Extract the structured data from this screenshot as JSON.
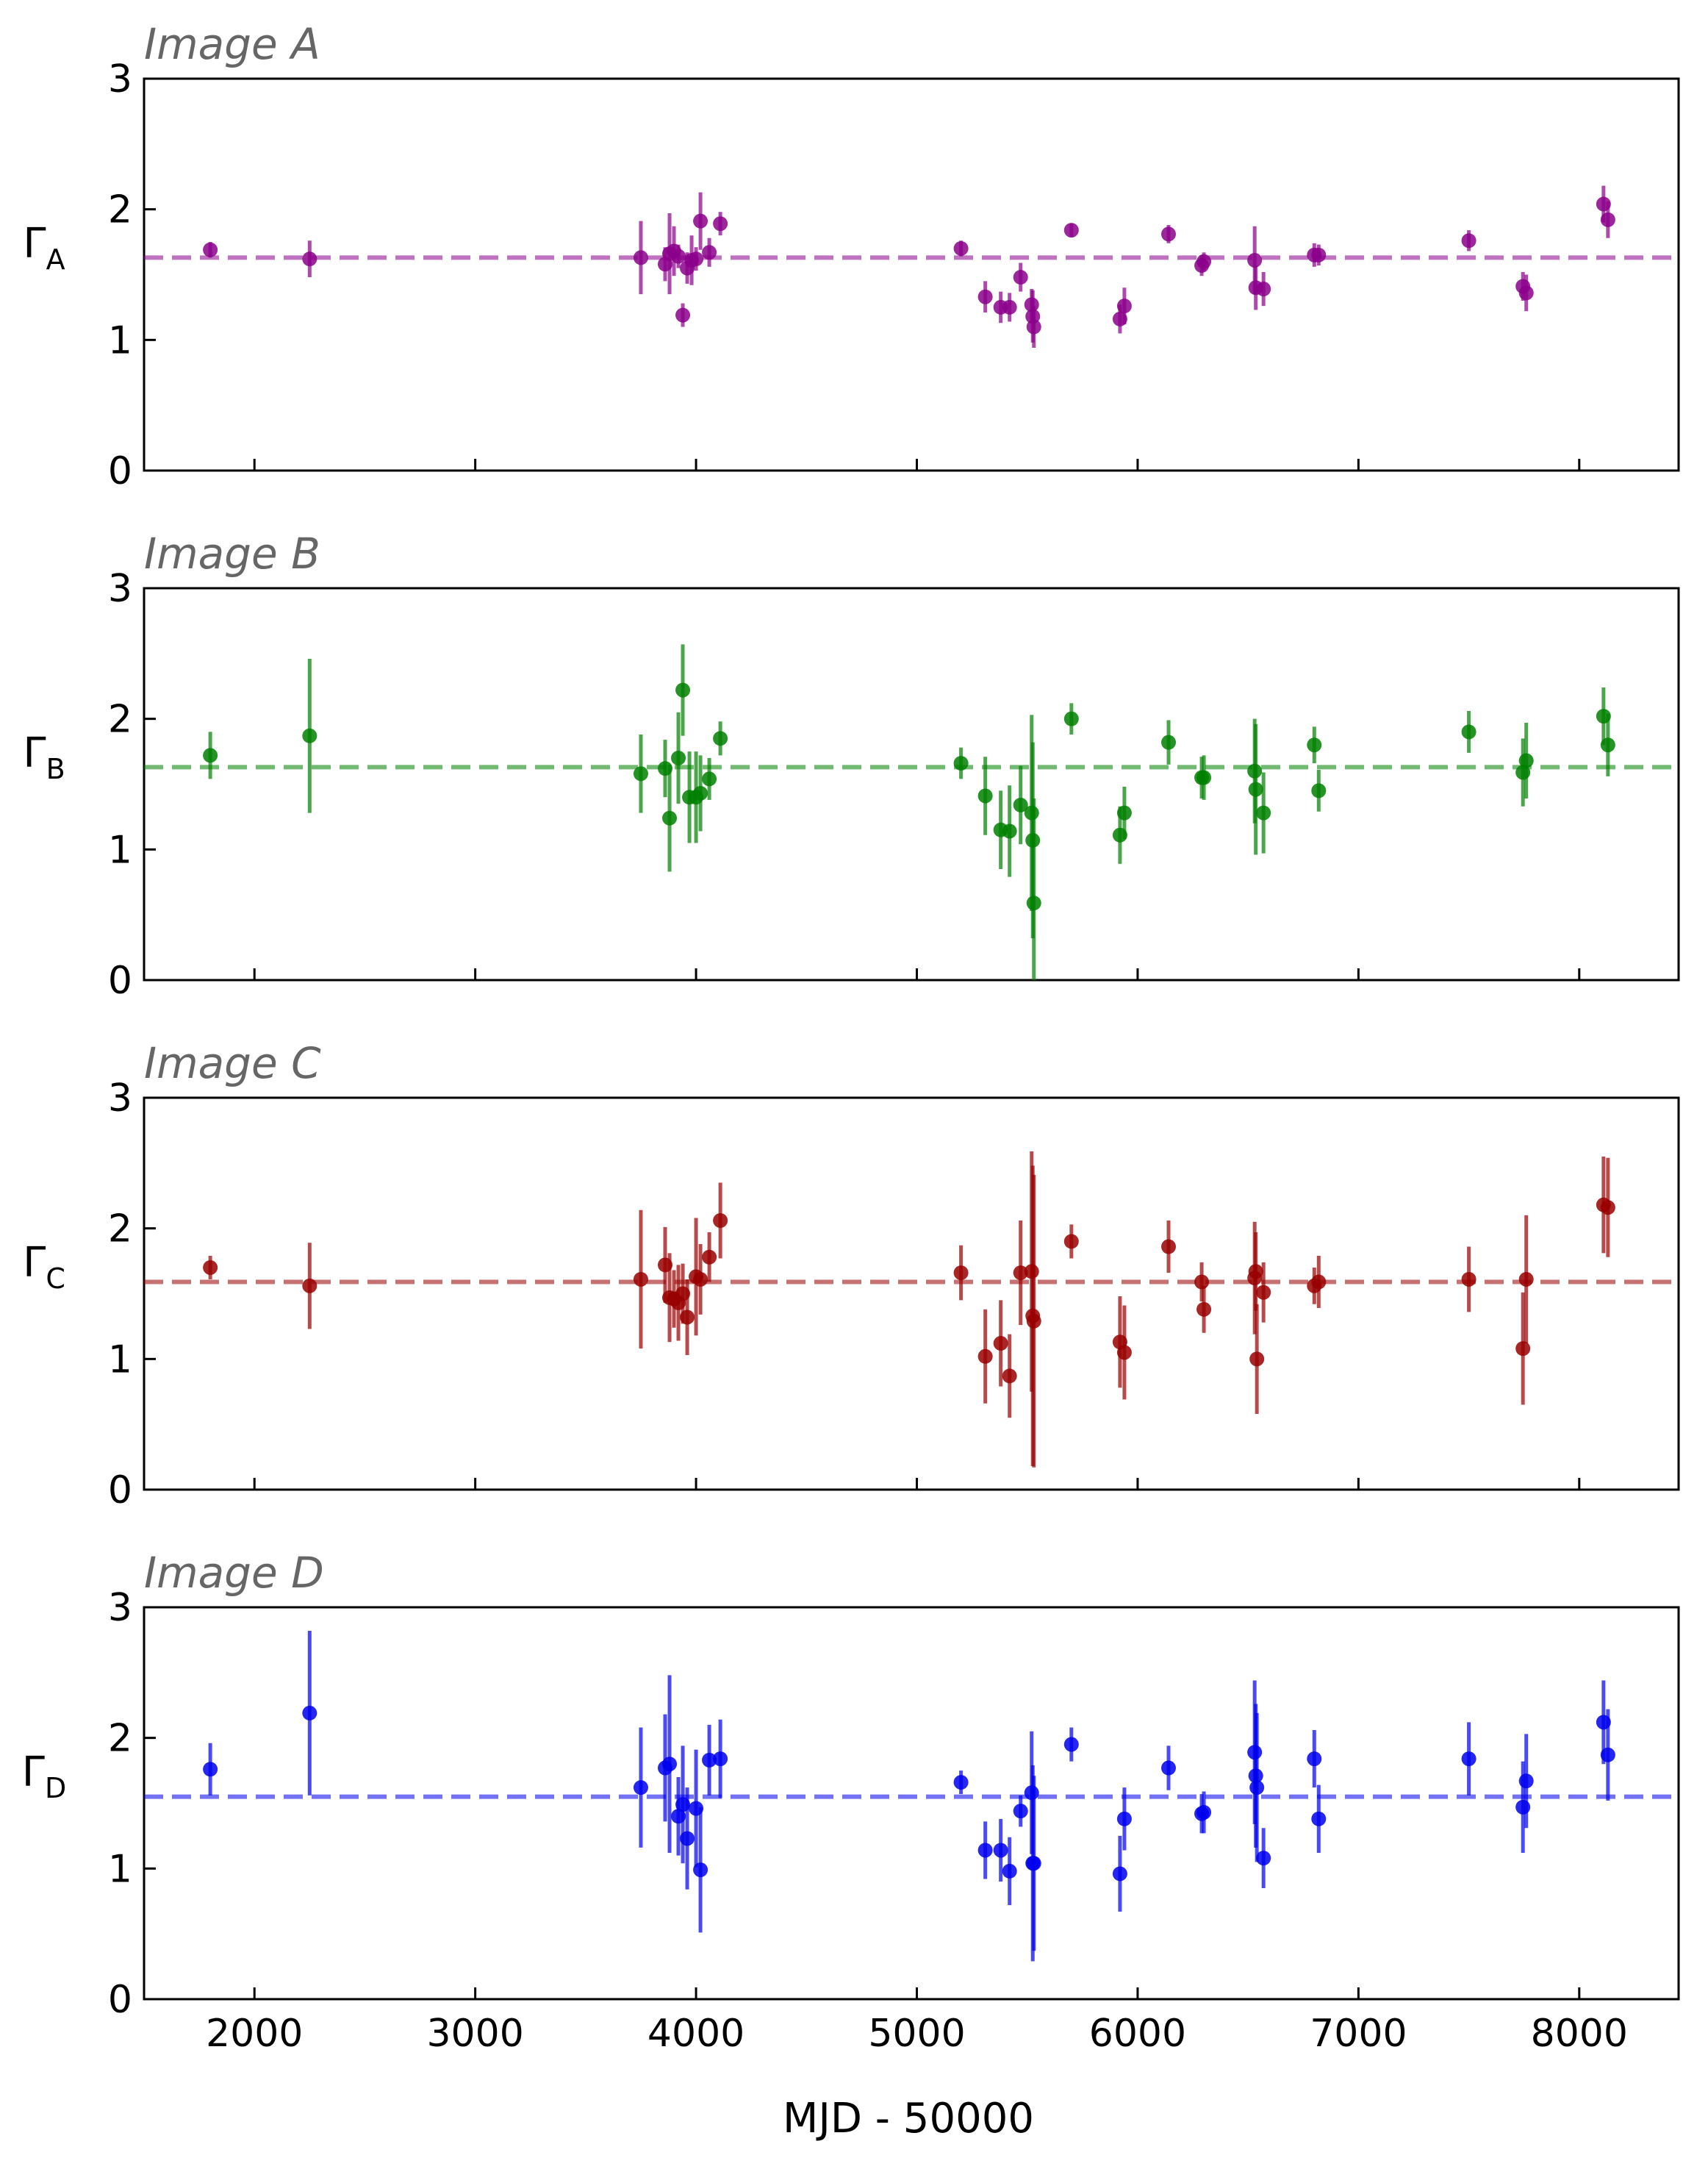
{
  "chart_data": [
    {
      "type": "scatter",
      "title": "Image A",
      "ylabel": "Γ",
      "ylabel_sub": "A",
      "color": "#8b008b",
      "reference_y": 1.63,
      "ylim": [
        0,
        3
      ],
      "xlim": [
        1500,
        8450
      ],
      "yticks": [
        "0",
        "1",
        "2",
        "3"
      ],
      "points": [
        {
          "x": 1800,
          "y": 1.69,
          "err": 0.06
        },
        {
          "x": 2250,
          "y": 1.62,
          "err": 0.14
        },
        {
          "x": 3750,
          "y": 1.63,
          "err": 0.28
        },
        {
          "x": 3860,
          "y": 1.58,
          "err": 0.13
        },
        {
          "x": 3880,
          "y": 1.66,
          "err": 0.31
        },
        {
          "x": 3900,
          "y": 1.68,
          "err": 0.19
        },
        {
          "x": 3920,
          "y": 1.64,
          "err": 0.09
        },
        {
          "x": 3940,
          "y": 1.19,
          "err": 0.09
        },
        {
          "x": 3960,
          "y": 1.55,
          "err": 0.12
        },
        {
          "x": 3980,
          "y": 1.61,
          "err": 0.19
        },
        {
          "x": 4000,
          "y": 1.62,
          "err": 0.09
        },
        {
          "x": 4020,
          "y": 1.91,
          "err": 0.22
        },
        {
          "x": 4060,
          "y": 1.67,
          "err": 0.11
        },
        {
          "x": 4110,
          "y": 1.89,
          "err": 0.09
        },
        {
          "x": 5200,
          "y": 1.7,
          "err": 0.06
        },
        {
          "x": 5310,
          "y": 1.33,
          "err": 0.12
        },
        {
          "x": 5380,
          "y": 1.25,
          "err": 0.12
        },
        {
          "x": 5420,
          "y": 1.25,
          "err": 0.11
        },
        {
          "x": 5470,
          "y": 1.48,
          "err": 0.11
        },
        {
          "x": 5520,
          "y": 1.27,
          "err": 0.12
        },
        {
          "x": 5525,
          "y": 1.18,
          "err": 0.2
        },
        {
          "x": 5530,
          "y": 1.1,
          "err": 0.16
        },
        {
          "x": 5700,
          "y": 1.84,
          "err": 0.05
        },
        {
          "x": 5920,
          "y": 1.16,
          "err": 0.11
        },
        {
          "x": 5940,
          "y": 1.26,
          "err": 0.14
        },
        {
          "x": 6140,
          "y": 1.81,
          "err": 0.07
        },
        {
          "x": 6290,
          "y": 1.57,
          "err": 0.08
        },
        {
          "x": 6300,
          "y": 1.6,
          "err": 0.07
        },
        {
          "x": 6530,
          "y": 1.61,
          "err": 0.26
        },
        {
          "x": 6535,
          "y": 1.4,
          "err": 0.17
        },
        {
          "x": 6570,
          "y": 1.39,
          "err": 0.13
        },
        {
          "x": 6800,
          "y": 1.65,
          "err": 0.09
        },
        {
          "x": 6820,
          "y": 1.65,
          "err": 0.08
        },
        {
          "x": 7500,
          "y": 1.76,
          "err": 0.08
        },
        {
          "x": 7745,
          "y": 1.41,
          "err": 0.11
        },
        {
          "x": 7760,
          "y": 1.36,
          "err": 0.14
        },
        {
          "x": 8110,
          "y": 2.04,
          "err": 0.14
        },
        {
          "x": 8130,
          "y": 1.92,
          "err": 0.14
        }
      ]
    },
    {
      "type": "scatter",
      "title": "Image B",
      "ylabel": "Γ",
      "ylabel_sub": "B",
      "color": "#008000",
      "reference_y": 1.63,
      "ylim": [
        0,
        3
      ],
      "xlim": [
        1500,
        8450
      ],
      "yticks": [
        "0",
        "1",
        "2",
        "3"
      ],
      "points": [
        {
          "x": 1800,
          "y": 1.72,
          "err": 0.18
        },
        {
          "x": 2250,
          "y": 1.87,
          "err": 0.59
        },
        {
          "x": 3750,
          "y": 1.58,
          "err": 0.3
        },
        {
          "x": 3860,
          "y": 1.62,
          "err": 0.22
        },
        {
          "x": 3880,
          "y": 1.24,
          "err": 0.41
        },
        {
          "x": 3920,
          "y": 1.7,
          "err": 0.35
        },
        {
          "x": 3940,
          "y": 2.22,
          "err": 0.35
        },
        {
          "x": 3970,
          "y": 1.4,
          "err": 0.35
        },
        {
          "x": 4000,
          "y": 1.4,
          "err": 0.35
        },
        {
          "x": 4020,
          "y": 1.43,
          "err": 0.29
        },
        {
          "x": 4060,
          "y": 1.54,
          "err": 0.16
        },
        {
          "x": 4110,
          "y": 1.85,
          "err": 0.13
        },
        {
          "x": 5200,
          "y": 1.66,
          "err": 0.12
        },
        {
          "x": 5310,
          "y": 1.41,
          "err": 0.3
        },
        {
          "x": 5380,
          "y": 1.15,
          "err": 0.3
        },
        {
          "x": 5420,
          "y": 1.14,
          "err": 0.35
        },
        {
          "x": 5470,
          "y": 1.34,
          "err": 0.3
        },
        {
          "x": 5520,
          "y": 1.28,
          "err": 0.75
        },
        {
          "x": 5525,
          "y": 1.07,
          "err": 0.75
        },
        {
          "x": 5530,
          "y": 0.59,
          "err": 0.8
        },
        {
          "x": 5700,
          "y": 2.0,
          "err": 0.12
        },
        {
          "x": 5920,
          "y": 1.11,
          "err": 0.22
        },
        {
          "x": 5940,
          "y": 1.28,
          "err": 0.2
        },
        {
          "x": 6140,
          "y": 1.82,
          "err": 0.17
        },
        {
          "x": 6290,
          "y": 1.55,
          "err": 0.16
        },
        {
          "x": 6300,
          "y": 1.55,
          "err": 0.17
        },
        {
          "x": 6530,
          "y": 1.6,
          "err": 0.4
        },
        {
          "x": 6535,
          "y": 1.46,
          "err": 0.5
        },
        {
          "x": 6570,
          "y": 1.28,
          "err": 0.31
        },
        {
          "x": 6800,
          "y": 1.8,
          "err": 0.14
        },
        {
          "x": 6820,
          "y": 1.45,
          "err": 0.16
        },
        {
          "x": 7500,
          "y": 1.9,
          "err": 0.16
        },
        {
          "x": 7745,
          "y": 1.59,
          "err": 0.26
        },
        {
          "x": 7760,
          "y": 1.68,
          "err": 0.29
        },
        {
          "x": 8110,
          "y": 2.02,
          "err": 0.22
        },
        {
          "x": 8130,
          "y": 1.8,
          "err": 0.24
        }
      ]
    },
    {
      "type": "scatter",
      "title": "Image C",
      "ylabel": "Γ",
      "ylabel_sub": "C",
      "color": "#990000",
      "reference_y": 1.59,
      "ylim": [
        0,
        3
      ],
      "xlim": [
        1500,
        8450
      ],
      "yticks": [
        "0",
        "1",
        "2",
        "3"
      ],
      "points": [
        {
          "x": 1800,
          "y": 1.7,
          "err": 0.09
        },
        {
          "x": 2250,
          "y": 1.56,
          "err": 0.33
        },
        {
          "x": 3750,
          "y": 1.61,
          "err": 0.53
        },
        {
          "x": 3860,
          "y": 1.72,
          "err": 0.29
        },
        {
          "x": 3880,
          "y": 1.47,
          "err": 0.34
        },
        {
          "x": 3900,
          "y": 1.46,
          "err": 0.22
        },
        {
          "x": 3920,
          "y": 1.43,
          "err": 0.29
        },
        {
          "x": 3940,
          "y": 1.5,
          "err": 0.23
        },
        {
          "x": 3960,
          "y": 1.32,
          "err": 0.29
        },
        {
          "x": 4000,
          "y": 1.63,
          "err": 0.45
        },
        {
          "x": 4020,
          "y": 1.61,
          "err": 0.27
        },
        {
          "x": 4060,
          "y": 1.78,
          "err": 0.19
        },
        {
          "x": 4110,
          "y": 2.06,
          "err": 0.29
        },
        {
          "x": 5200,
          "y": 1.66,
          "err": 0.21
        },
        {
          "x": 5310,
          "y": 1.02,
          "err": 0.36
        },
        {
          "x": 5380,
          "y": 1.12,
          "err": 0.33
        },
        {
          "x": 5420,
          "y": 0.87,
          "err": 0.32
        },
        {
          "x": 5470,
          "y": 1.66,
          "err": 0.4
        },
        {
          "x": 5520,
          "y": 1.67,
          "err": 0.92
        },
        {
          "x": 5525,
          "y": 1.33,
          "err": 1.15
        },
        {
          "x": 5530,
          "y": 1.29,
          "err": 1.12
        },
        {
          "x": 5700,
          "y": 1.9,
          "err": 0.13
        },
        {
          "x": 5920,
          "y": 1.13,
          "err": 0.35
        },
        {
          "x": 5940,
          "y": 1.05,
          "err": 0.36
        },
        {
          "x": 6140,
          "y": 1.86,
          "err": 0.2
        },
        {
          "x": 6290,
          "y": 1.59,
          "err": 0.15
        },
        {
          "x": 6300,
          "y": 1.38,
          "err": 0.18
        },
        {
          "x": 6530,
          "y": 1.62,
          "err": 0.43
        },
        {
          "x": 6535,
          "y": 1.67,
          "err": 0.3
        },
        {
          "x": 6540,
          "y": 1.0,
          "err": 0.42
        },
        {
          "x": 6570,
          "y": 1.51,
          "err": 0.23
        },
        {
          "x": 6800,
          "y": 1.56,
          "err": 0.14
        },
        {
          "x": 6820,
          "y": 1.59,
          "err": 0.2
        },
        {
          "x": 7500,
          "y": 1.61,
          "err": 0.25
        },
        {
          "x": 7745,
          "y": 1.08,
          "err": 0.43
        },
        {
          "x": 7760,
          "y": 1.61,
          "err": 0.49
        },
        {
          "x": 8110,
          "y": 2.18,
          "err": 0.37
        },
        {
          "x": 8130,
          "y": 2.16,
          "err": 0.38
        }
      ]
    },
    {
      "type": "scatter",
      "title": "Image D",
      "ylabel": "Γ",
      "ylabel_sub": "D",
      "color": "#0000ee",
      "reference_y": 1.55,
      "ylim": [
        0,
        3
      ],
      "xlim": [
        1500,
        8450
      ],
      "xlabel": "MJD - 50000",
      "xticks": [
        "2000",
        "3000",
        "4000",
        "5000",
        "6000",
        "7000",
        "8000"
      ],
      "yticks": [
        "0",
        "1",
        "2",
        "3"
      ],
      "points": [
        {
          "x": 1800,
          "y": 1.76,
          "err": 0.2
        },
        {
          "x": 2250,
          "y": 2.19,
          "err": 0.63
        },
        {
          "x": 3750,
          "y": 1.62,
          "err": 0.46
        },
        {
          "x": 3860,
          "y": 1.77,
          "err": 0.41
        },
        {
          "x": 3880,
          "y": 1.8,
          "err": 0.68
        },
        {
          "x": 3920,
          "y": 1.4,
          "err": 0.3
        },
        {
          "x": 3940,
          "y": 1.49,
          "err": 0.45
        },
        {
          "x": 3960,
          "y": 1.23,
          "err": 0.39
        },
        {
          "x": 4000,
          "y": 1.46,
          "err": 0.45
        },
        {
          "x": 4020,
          "y": 0.99,
          "err": 0.48
        },
        {
          "x": 4060,
          "y": 1.83,
          "err": 0.27
        },
        {
          "x": 4110,
          "y": 1.84,
          "err": 0.3
        },
        {
          "x": 5200,
          "y": 1.66,
          "err": 0.09
        },
        {
          "x": 5310,
          "y": 1.14,
          "err": 0.22
        },
        {
          "x": 5380,
          "y": 1.14,
          "err": 0.24
        },
        {
          "x": 5420,
          "y": 0.98,
          "err": 0.26
        },
        {
          "x": 5470,
          "y": 1.44,
          "err": 0.12
        },
        {
          "x": 5520,
          "y": 1.58,
          "err": 0.47
        },
        {
          "x": 5525,
          "y": 1.04,
          "err": 0.75
        },
        {
          "x": 5530,
          "y": 1.04,
          "err": 0.67
        },
        {
          "x": 5700,
          "y": 1.95,
          "err": 0.13
        },
        {
          "x": 5920,
          "y": 0.96,
          "err": 0.29
        },
        {
          "x": 5940,
          "y": 1.38,
          "err": 0.24
        },
        {
          "x": 6140,
          "y": 1.77,
          "err": 0.17
        },
        {
          "x": 6290,
          "y": 1.42,
          "err": 0.15
        },
        {
          "x": 6300,
          "y": 1.43,
          "err": 0.16
        },
        {
          "x": 6530,
          "y": 1.89,
          "err": 0.55
        },
        {
          "x": 6535,
          "y": 1.71,
          "err": 0.55
        },
        {
          "x": 6540,
          "y": 1.62,
          "err": 0.57
        },
        {
          "x": 6570,
          "y": 1.08,
          "err": 0.23
        },
        {
          "x": 6800,
          "y": 1.84,
          "err": 0.22
        },
        {
          "x": 6820,
          "y": 1.38,
          "err": 0.26
        },
        {
          "x": 7500,
          "y": 1.84,
          "err": 0.28
        },
        {
          "x": 7745,
          "y": 1.47,
          "err": 0.35
        },
        {
          "x": 7760,
          "y": 1.67,
          "err": 0.36
        },
        {
          "x": 8110,
          "y": 2.12,
          "err": 0.32
        },
        {
          "x": 8130,
          "y": 1.87,
          "err": 0.35
        }
      ]
    }
  ]
}
